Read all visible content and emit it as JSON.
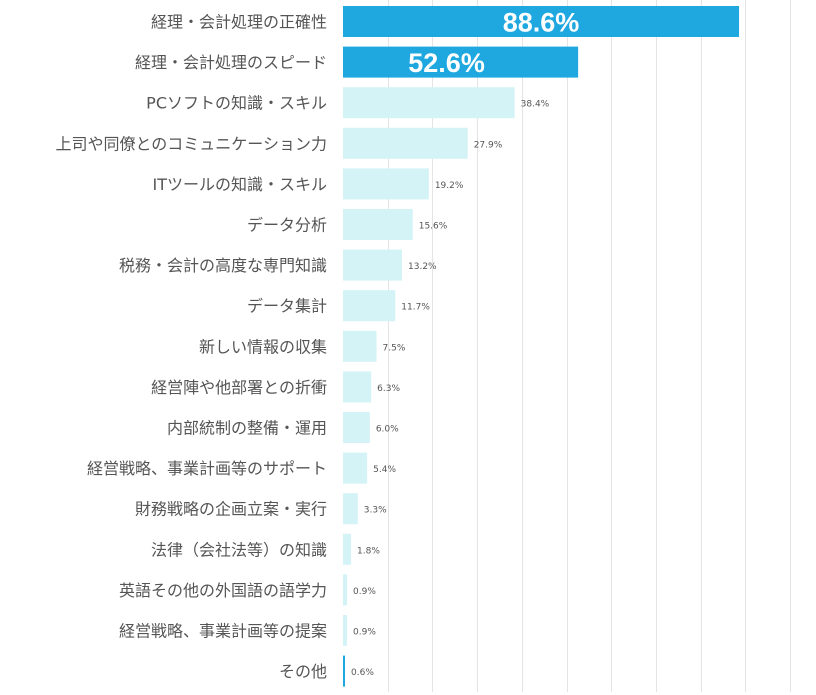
{
  "chart_data": {
    "type": "bar",
    "orientation": "horizontal",
    "title": "",
    "xlabel": "",
    "ylabel": "",
    "xlim": [
      0,
      100
    ],
    "grid": true,
    "grid_step": 10,
    "legend": "none",
    "highlight_color": "#1fa8e0",
    "normal_color": "#d3f3f6",
    "categories": [
      "経理・会計処理の正確性",
      "経理・会計処理のスピード",
      "PCソフトの知識・スキル",
      "上司や同僚とのコミュニケーション力",
      "ITツールの知識・スキル",
      "データ分析",
      "税務・会計の高度な専門知識",
      "データ集計",
      "新しい情報の収集",
      "経営陣や他部署との折衝",
      "内部統制の整備・運用",
      "経営戦略、事業計画等のサポート",
      "財務戦略の企画立案・実行",
      "法律（会社法等）の知識",
      "英語その他の外国語の語学力",
      "経営戦略、事業計画等の提案",
      "その他"
    ],
    "values": [
      88.6,
      52.6,
      38.4,
      27.9,
      19.2,
      15.6,
      13.2,
      11.7,
      7.5,
      6.3,
      6.0,
      5.4,
      3.3,
      1.8,
      0.9,
      0.9,
      0.6
    ],
    "value_labels": [
      "88.6%",
      "52.6%",
      "38.4%",
      "27.9%",
      "19.2%",
      "15.6%",
      "13.2%",
      "11.7%",
      "7.5%",
      "6.3%",
      "6.0%",
      "5.4%",
      "3.3%",
      "1.8%",
      "0.9%",
      "0.9%",
      "0.6%"
    ],
    "highlighted": [
      true,
      true,
      false,
      false,
      false,
      false,
      false,
      false,
      false,
      false,
      false,
      false,
      false,
      false,
      false,
      false,
      false
    ],
    "last_bar_color": "#1fa8e0"
  }
}
